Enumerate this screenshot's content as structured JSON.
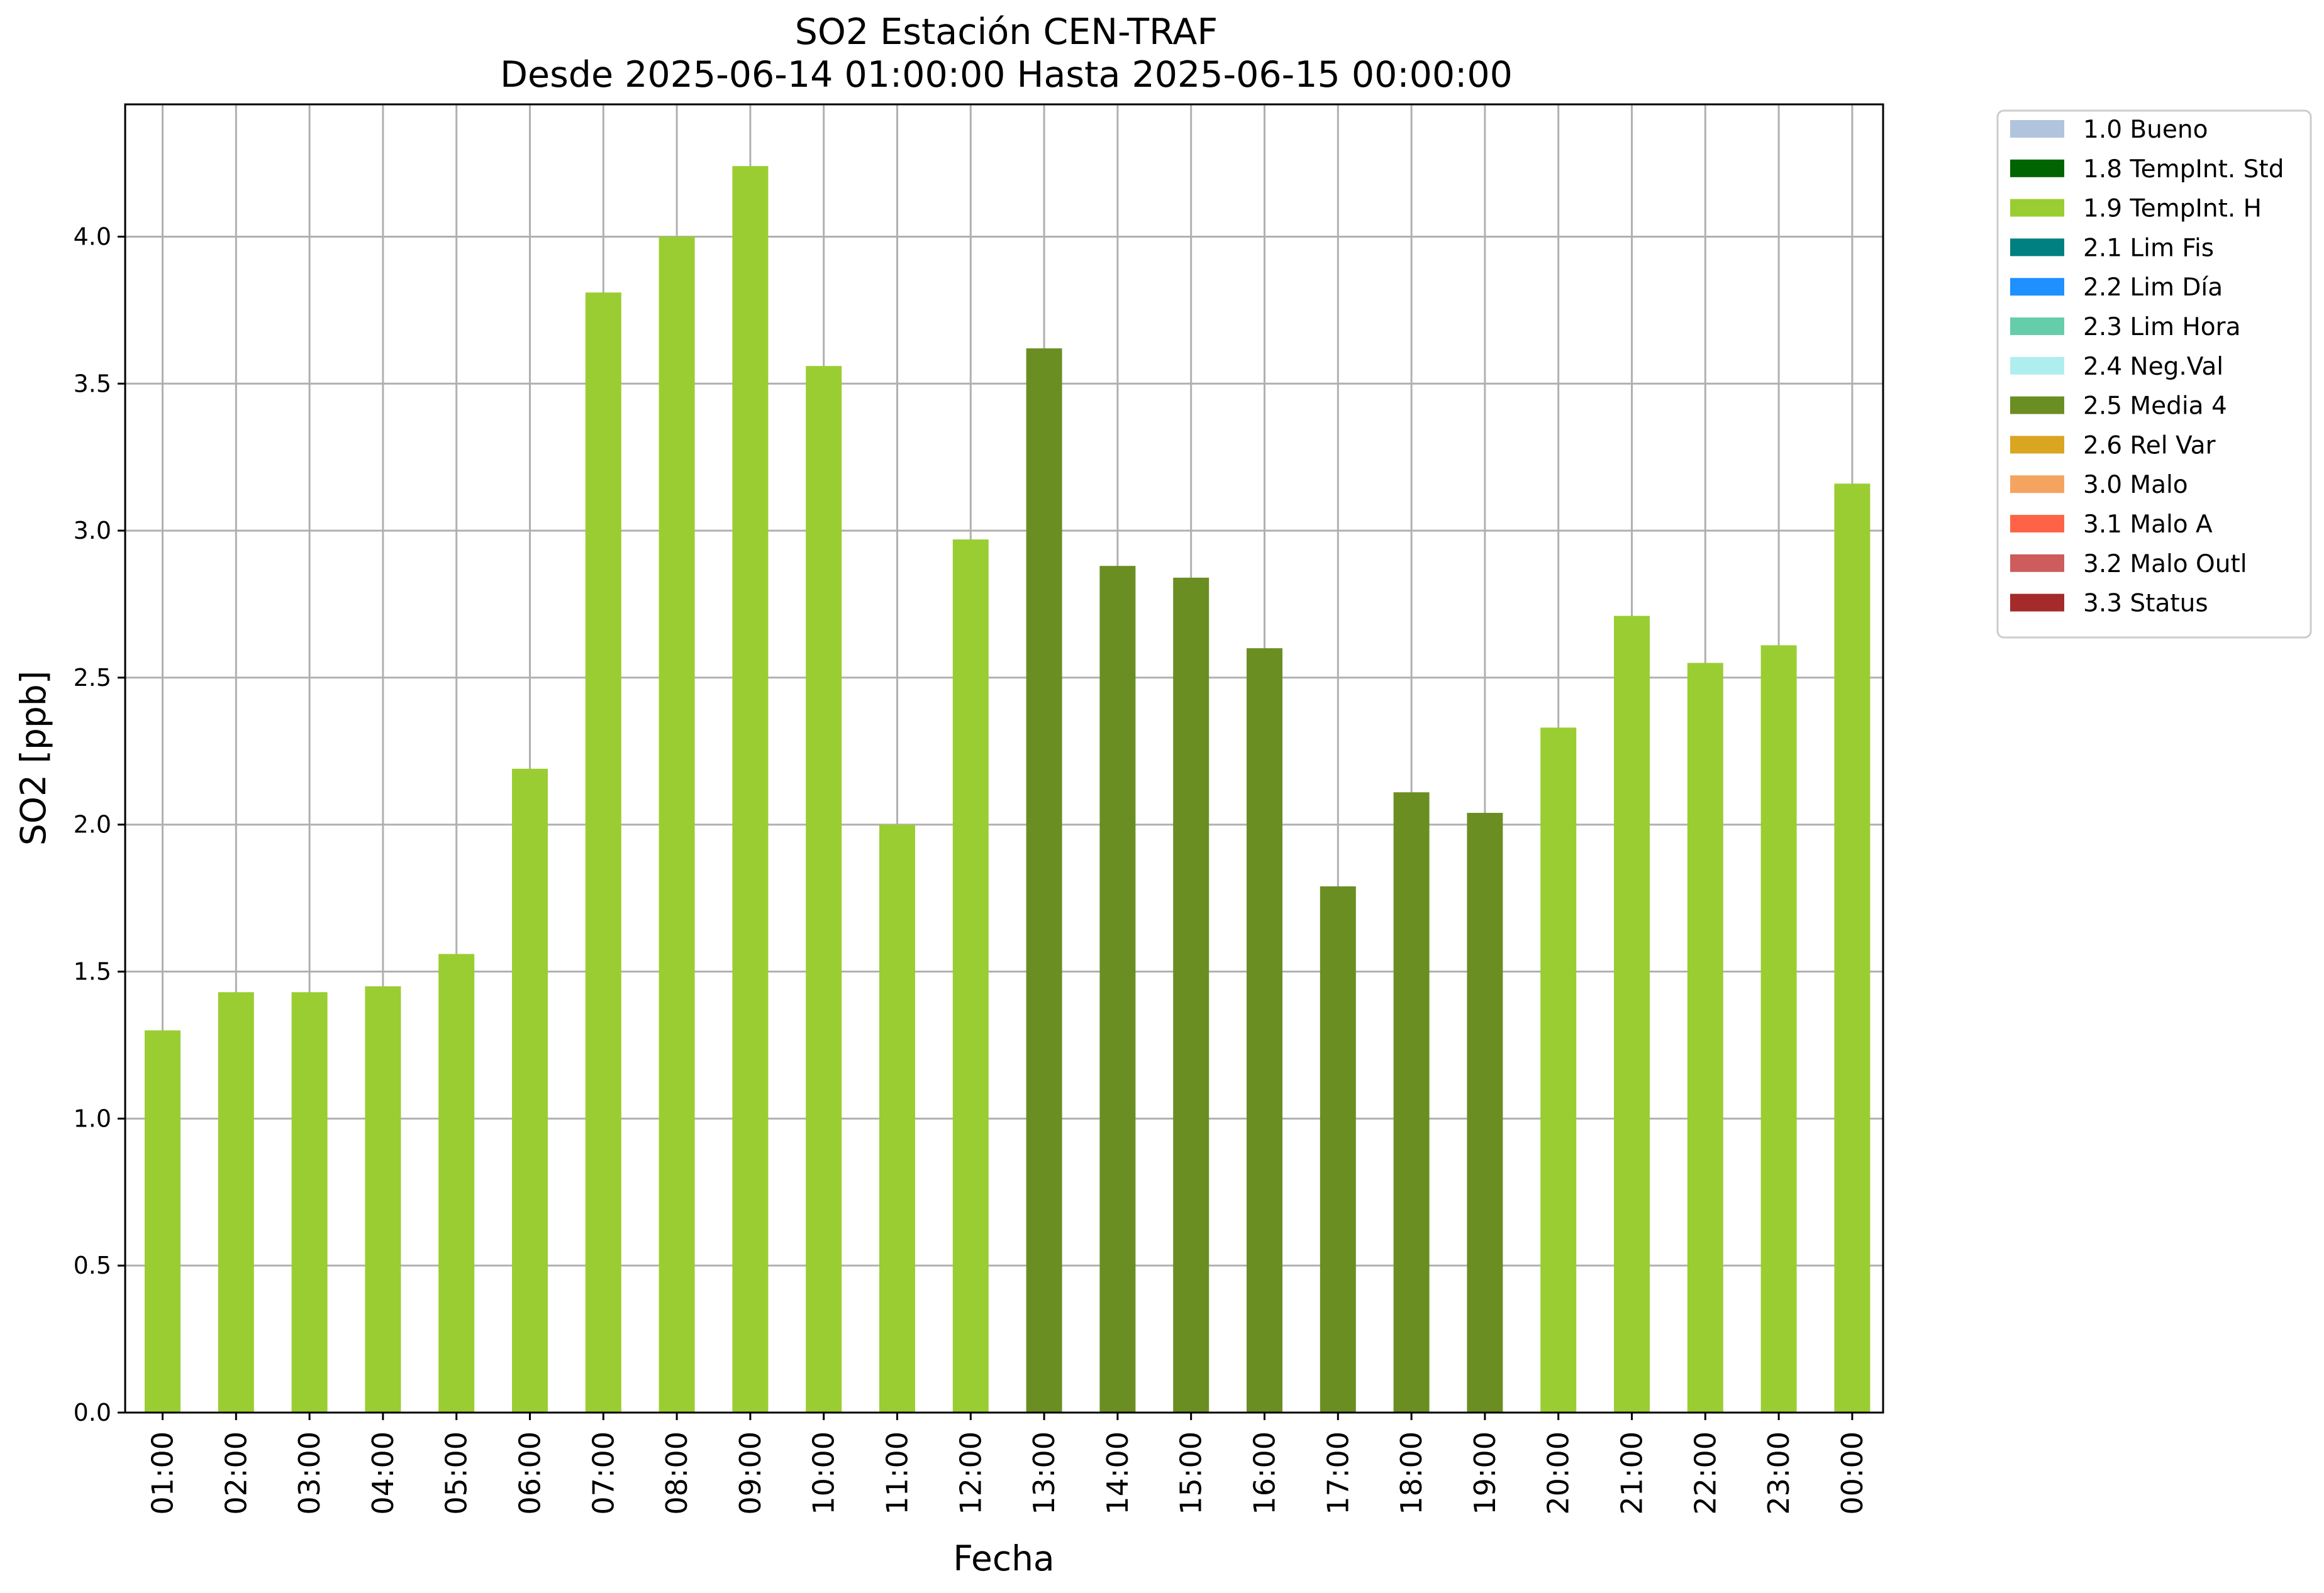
{
  "chart_data": {
    "type": "bar",
    "title": "SO2 Estación CEN-TRAF",
    "subtitle": "Desde 2025-06-14 01:00:00 Hasta 2025-06-15 00:00:00",
    "xlabel": "Fecha",
    "ylabel": "SO2 [ppb]",
    "ylim": [
      0,
      4.45
    ],
    "yticks": [
      "0.0",
      "0.5",
      "1.0",
      "1.5",
      "2.0",
      "2.5",
      "3.0",
      "3.5",
      "4.0"
    ],
    "grid": true,
    "legend_position": "outside-right",
    "categories": [
      "01:00",
      "02:00",
      "03:00",
      "04:00",
      "05:00",
      "06:00",
      "07:00",
      "08:00",
      "09:00",
      "10:00",
      "11:00",
      "12:00",
      "13:00",
      "14:00",
      "15:00",
      "16:00",
      "17:00",
      "18:00",
      "19:00",
      "20:00",
      "21:00",
      "22:00",
      "23:00",
      "00:00"
    ],
    "values": [
      1.3,
      1.43,
      1.43,
      1.45,
      1.56,
      2.19,
      3.81,
      4.0,
      4.24,
      3.56,
      2.0,
      2.97,
      3.62,
      2.88,
      2.84,
      2.6,
      1.79,
      2.11,
      2.04,
      2.33,
      2.71,
      2.55,
      2.61,
      3.16
    ],
    "flags": [
      "1.9 TempInt. H",
      "1.9 TempInt. H",
      "1.9 TempInt. H",
      "1.9 TempInt. H",
      "1.9 TempInt. H",
      "1.9 TempInt. H",
      "1.9 TempInt. H",
      "1.9 TempInt. H",
      "1.9 TempInt. H",
      "1.9 TempInt. H",
      "1.9 TempInt. H",
      "1.9 TempInt. H",
      "2.5 Media 4",
      "2.5 Media 4",
      "2.5 Media 4",
      "2.5 Media 4",
      "2.5 Media 4",
      "2.5 Media 4",
      "2.5 Media 4",
      "1.9 TempInt. H",
      "1.9 TempInt. H",
      "1.9 TempInt. H",
      "1.9 TempInt. H",
      "1.9 TempInt. H"
    ],
    "legend": [
      {
        "label": "1.0 Bueno",
        "color": "#b0c4de"
      },
      {
        "label": "1.8 TempInt. Std",
        "color": "#006400"
      },
      {
        "label": "1.9 TempInt. H",
        "color": "#9acd32"
      },
      {
        "label": "2.1 Lim Fis",
        "color": "#008080"
      },
      {
        "label": "2.2 Lim Día",
        "color": "#1e90ff"
      },
      {
        "label": "2.3 Lim Hora",
        "color": "#66cdaa"
      },
      {
        "label": "2.4 Neg.Val",
        "color": "#afeeee"
      },
      {
        "label": "2.5 Media 4",
        "color": "#6b8e23"
      },
      {
        "label": "2.6 Rel Var",
        "color": "#daa520"
      },
      {
        "label": "3.0 Malo",
        "color": "#f4a460"
      },
      {
        "label": "3.1 Malo A",
        "color": "#ff6347"
      },
      {
        "label": "3.2 Malo Outl",
        "color": "#cd5c5c"
      },
      {
        "label": "3.3 Status",
        "color": "#a52a2a"
      }
    ],
    "colors": {
      "grid": "#b0b0b0",
      "axes": "#000000"
    }
  }
}
